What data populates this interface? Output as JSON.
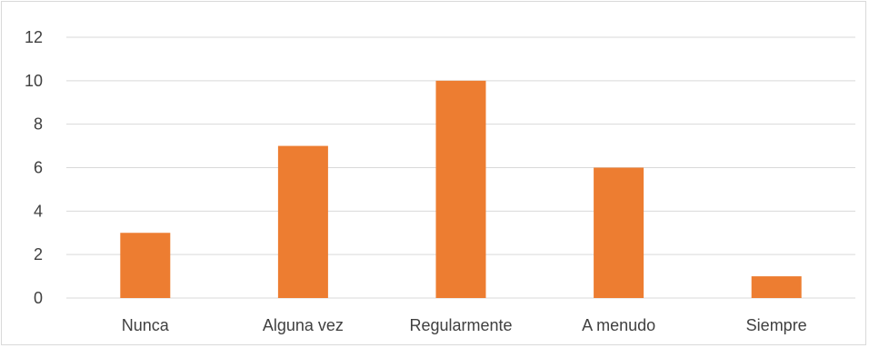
{
  "chart_data": {
    "type": "bar",
    "categories": [
      "Nunca",
      "Alguna vez",
      "Regularmente",
      "A menudo",
      "Siempre"
    ],
    "values": [
      3,
      7,
      10,
      6,
      1
    ],
    "ylim": [
      0,
      12
    ],
    "yticks": [
      "0",
      "2",
      "4",
      "6",
      "8",
      "10",
      "12"
    ],
    "grid": true,
    "legend": "none",
    "colors": {
      "bar": "#ED7D31",
      "grid": "#D9D9D9",
      "text": "#404040"
    }
  }
}
